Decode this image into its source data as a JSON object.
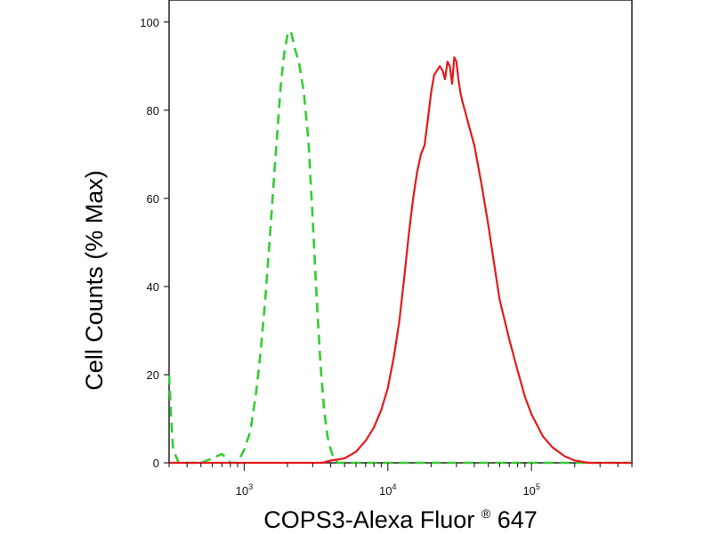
{
  "chart_data": {
    "type": "line",
    "title": "",
    "xlabel": "COPS3-Alexa Fluor",
    "xlabel_superscript": "®",
    "xlabel_suffix": " 647",
    "ylabel": "Cell Counts (% Max)",
    "x_scale": "log",
    "xlim": [
      300,
      500000
    ],
    "ylim": [
      0,
      105
    ],
    "y_ticks": [
      0,
      20,
      40,
      60,
      80,
      100
    ],
    "x_major_ticks": [
      {
        "value": 1000,
        "base": "10",
        "exp": "3"
      },
      {
        "value": 10000,
        "base": "10",
        "exp": "4"
      },
      {
        "value": 100000,
        "base": "10",
        "exp": "5"
      }
    ],
    "grid": false,
    "legend": "none",
    "series": [
      {
        "style": "dashed",
        "color": "#33cc33",
        "x": [
          300,
          310,
          320,
          350,
          400,
          500,
          600,
          700,
          750,
          800,
          900,
          1000,
          1100,
          1200,
          1300,
          1400,
          1500,
          1600,
          1700,
          1800,
          1900,
          2000,
          2100,
          2150,
          2250,
          2400,
          2600,
          2800,
          3000,
          3200,
          3400,
          3600,
          3800,
          4000,
          4200,
          4500,
          5000,
          10000,
          30000,
          100000,
          300000,
          500000
        ],
        "y": [
          20,
          10,
          3,
          0,
          0,
          0,
          1,
          2,
          1,
          0,
          0,
          3,
          7,
          15,
          25,
          37,
          50,
          63,
          75,
          86,
          93,
          97,
          98,
          97,
          94,
          91,
          84,
          73,
          55,
          37,
          22,
          12,
          6,
          3,
          1,
          0,
          0,
          0,
          0,
          0,
          0,
          0
        ]
      },
      {
        "style": "solid",
        "color": "#e31a1c",
        "x": [
          300,
          3500,
          4000,
          5000,
          6000,
          7000,
          8000,
          9000,
          10000,
          11000,
          12000,
          13000,
          14000,
          15000,
          16000,
          17000,
          18000,
          19000,
          20000,
          21000,
          22000,
          23000,
          24000,
          25000,
          26000,
          27000,
          28000,
          29000,
          30000,
          31000,
          32000,
          33000,
          35000,
          37000,
          40000,
          45000,
          50000,
          55000,
          60000,
          70000,
          80000,
          90000,
          100000,
          120000,
          140000,
          170000,
          200000,
          250000,
          300000,
          400000,
          500000
        ],
        "y": [
          0,
          0,
          0.5,
          1,
          2.5,
          5,
          8,
          12,
          17,
          24,
          32,
          42,
          52,
          60,
          66,
          70,
          72,
          78,
          84,
          88,
          89,
          90,
          89,
          87,
          91,
          90,
          86,
          92,
          91,
          87,
          84,
          82,
          79,
          76,
          72,
          63,
          54,
          45,
          37,
          28,
          21,
          15,
          11,
          6,
          3.5,
          1.5,
          0.5,
          0,
          0,
          0,
          0
        ]
      }
    ]
  }
}
